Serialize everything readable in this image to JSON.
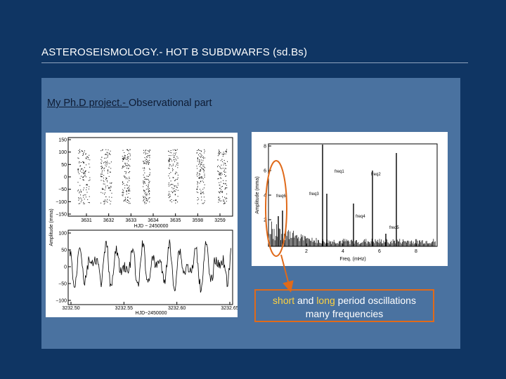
{
  "slide": {
    "title": "ASTEROSEISMOLOGY.- HOT B SUBDWARFS (sd.Bs)",
    "subtitle_underlined": "My Ph.D project.- ",
    "subtitle_rest": "Observational part"
  },
  "left_plot": {
    "top_yticks": [
      "150",
      "100",
      "50",
      "0",
      "−50",
      "−100",
      "−150"
    ],
    "top_xticks": [
      "3631",
      "3632",
      "3633",
      "3634",
      "3635",
      "3598",
      "3259"
    ],
    "top_xlabel": "HJD − 2450000",
    "ylabel": "Amplitude (mma)",
    "bottom_yticks": [
      "100",
      "50",
      "0",
      "−50",
      "−100"
    ],
    "bottom_xticks": [
      "3232.50",
      "3232.55",
      "3232.60",
      "3232.65"
    ],
    "bottom_xlabel": "HJD−2450000"
  },
  "right_plot": {
    "yticks": [
      "8",
      "6",
      "4",
      "2"
    ],
    "xticks": [
      "2",
      "4",
      "6",
      "8"
    ],
    "xlabel": "Freq. (mHz)",
    "ylabel": "Amplitude (mma)",
    "labels": [
      "freq1",
      "freq2",
      "freq3",
      "freq4",
      "freq5",
      "freq6"
    ]
  },
  "callout": {
    "word1": "short",
    "and": " and ",
    "word2": "long",
    "rest": " period oscillations",
    "line2": "many frequencies"
  },
  "colors": {
    "background": "#0f3563",
    "panel": "#4a72a0",
    "callout_border": "#e06a1a",
    "highlight": "#ffd23f"
  }
}
